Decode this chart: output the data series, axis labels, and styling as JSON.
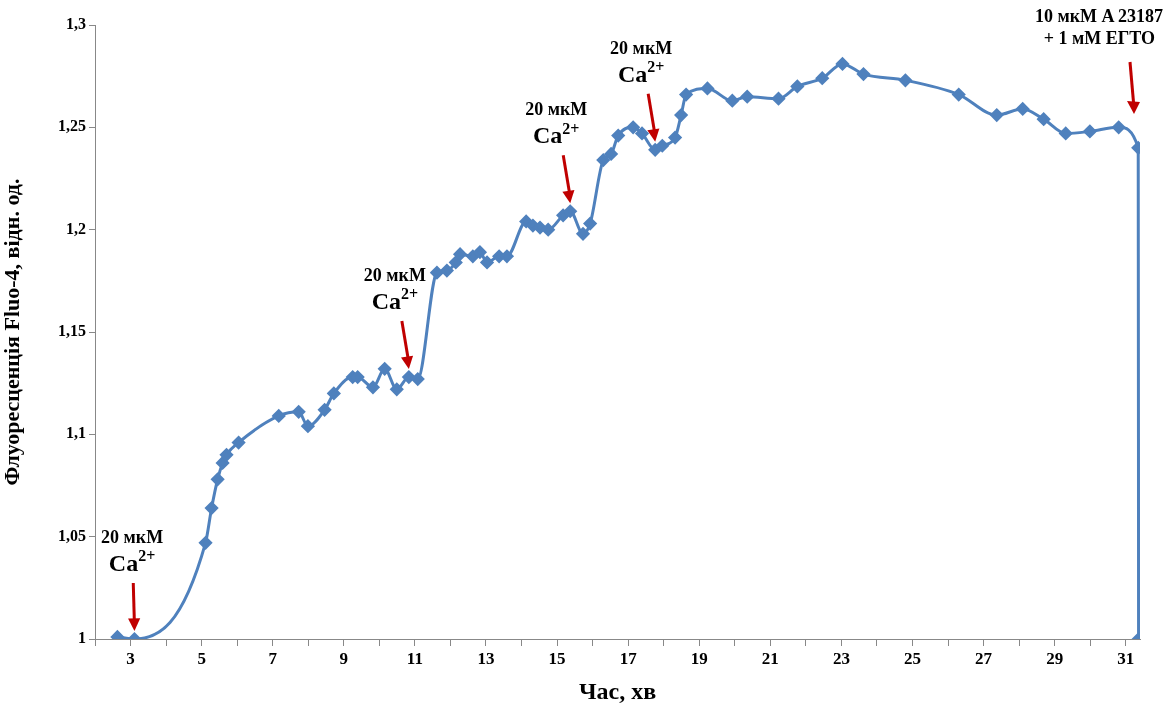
{
  "chart_data": {
    "type": "line",
    "xlabel": "Час, хв",
    "ylabel": "Флуоресценція Fluo-4, відн. од.",
    "color": "#4f81bd",
    "marker": "diamond",
    "grid": false,
    "legend": false,
    "x": [
      2.63,
      3.11,
      5.11,
      5.28,
      5.45,
      5.59,
      5.7,
      6.04,
      7.17,
      7.73,
      7.99,
      8.46,
      8.72,
      9.25,
      9.39,
      9.82,
      10.15,
      10.49,
      10.83,
      11.08,
      11.62,
      11.9,
      12.15,
      12.27,
      12.63,
      12.83,
      13.03,
      13.37,
      13.59,
      14.13,
      14.32,
      14.52,
      14.75,
      15.17,
      15.37,
      15.73,
      15.93,
      16.3,
      16.52,
      16.72,
      17.14,
      17.39,
      17.76,
      17.96,
      18.32,
      18.49,
      18.63,
      19.23,
      19.93,
      20.35,
      21.23,
      21.76,
      22.46,
      23.03,
      23.62,
      24.8,
      26.3,
      27.37,
      28.1,
      28.69,
      29.31,
      29.99,
      30.8,
      31.35,
      31.36
    ],
    "values": [
      1.001,
      1.0,
      1.047,
      1.064,
      1.078,
      1.086,
      1.09,
      1.096,
      1.109,
      1.111,
      1.104,
      1.112,
      1.12,
      1.128,
      1.128,
      1.123,
      1.132,
      1.122,
      1.128,
      1.127,
      1.179,
      1.18,
      1.184,
      1.188,
      1.187,
      1.189,
      1.184,
      1.187,
      1.187,
      1.204,
      1.202,
      1.201,
      1.2,
      1.207,
      1.209,
      1.198,
      1.203,
      1.234,
      1.237,
      1.246,
      1.25,
      1.247,
      1.239,
      1.241,
      1.245,
      1.256,
      1.266,
      1.269,
      1.263,
      1.265,
      1.264,
      1.27,
      1.274,
      1.281,
      1.276,
      1.273,
      1.266,
      1.256,
      1.259,
      1.254,
      1.247,
      1.248,
      1.25,
      1.24,
      1.0
    ],
    "xlim": [
      2,
      31.4
    ],
    "xticks": [
      {
        "value": 2,
        "label": null
      },
      3,
      {
        "value": 4,
        "label": null
      },
      5,
      {
        "value": 6,
        "label": null
      },
      7,
      {
        "value": 8,
        "label": null
      },
      9,
      {
        "value": 10,
        "label": null
      },
      11,
      {
        "value": 12,
        "label": null
      },
      13,
      {
        "value": 14,
        "label": null
      },
      15,
      {
        "value": 16,
        "label": null
      },
      17,
      {
        "value": 18,
        "label": null
      },
      19,
      {
        "value": 20,
        "label": null
      },
      21,
      {
        "value": 22,
        "label": null
      },
      23,
      {
        "value": 24,
        "label": null
      },
      25,
      {
        "value": 26,
        "label": null
      },
      27,
      {
        "value": 28,
        "label": null
      },
      29,
      {
        "value": 30,
        "label": null
      },
      31
    ],
    "ylim": [
      1,
      1.3
    ],
    "yticks": [
      1,
      {
        "value": 1.05,
        "label": "1,05"
      },
      {
        "value": 1.1,
        "label": "1,1"
      },
      {
        "value": 1.15,
        "label": "1,15"
      },
      {
        "value": 1.2,
        "label": "1,2"
      },
      {
        "value": 1.25,
        "label": "1,25"
      },
      {
        "value": 1.3,
        "label": "1,3"
      }
    ],
    "annotations": [
      {
        "text": "20 мкМ\nCa$^{2+}$",
        "x": 3.11,
        "y": 1.0
      },
      {
        "text": "20 мкМ\nCa$^{2+}$",
        "x": 10.83,
        "y": 1.128
      },
      {
        "text": "20 мкМ\nCa$^{2+}$",
        "x": 15.37,
        "y": 1.209
      },
      {
        "text": "20 мкМ\nCa$^{2+}$",
        "x": 17.76,
        "y": 1.239
      },
      "10 мкМ A 23187\n+ 1 мМ ЕГТО"
    ]
  }
}
